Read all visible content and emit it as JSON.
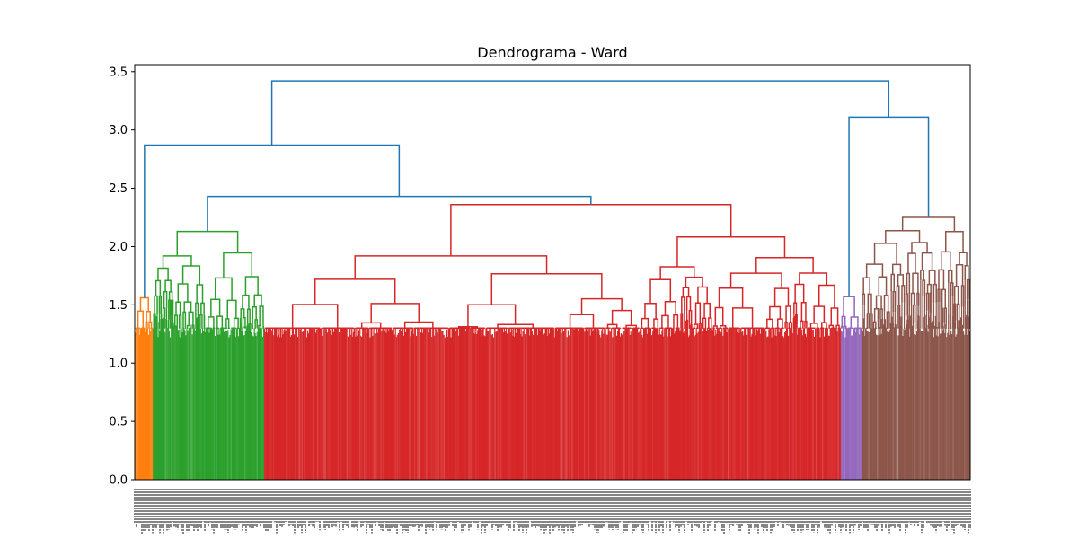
{
  "chart_data": {
    "type": "dendrogram",
    "title": "Dendrograma - Ward",
    "xlabel": "",
    "ylabel": "",
    "ylim": [
      0,
      3.56
    ],
    "yticks": [
      0.0,
      0.5,
      1.0,
      1.5,
      2.0,
      2.5,
      3.0,
      3.5
    ],
    "ytick_labels": [
      "0.0",
      "0.5",
      "1.0",
      "1.5",
      "2.0",
      "2.5",
      "3.0",
      "3.5"
    ],
    "leaf_labels_legible": false,
    "link_color_above_threshold": "#1f77b4",
    "clusters": [
      {
        "color": "#ff7f0e",
        "leaf_share": 0.022,
        "merge_height": 1.56
      },
      {
        "color": "#2ca02c",
        "leaf_share": 0.133,
        "merge_height": 2.13
      },
      {
        "color": "#d62728",
        "leaf_share": 0.69,
        "merge_height": 2.36
      },
      {
        "color": "#9467bd",
        "leaf_share": 0.025,
        "merge_height": 1.57
      },
      {
        "color": "#8c564b",
        "leaf_share": 0.13,
        "merge_height": 2.25
      }
    ],
    "top_merges": [
      {
        "join": [
          "orange",
          "A"
        ],
        "height": 2.87,
        "note": "A = green+red"
      },
      {
        "join": [
          "green",
          "red"
        ],
        "height": 2.43
      },
      {
        "join": [
          "purple",
          "brown"
        ],
        "height": 3.11
      },
      {
        "join": [
          "left",
          "right"
        ],
        "height": 3.42
      }
    ]
  }
}
